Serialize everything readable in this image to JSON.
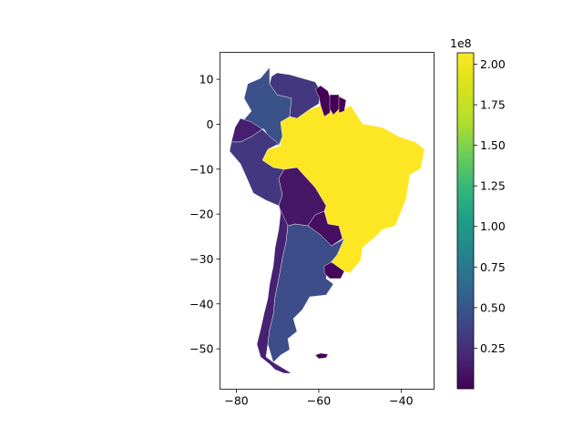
{
  "chart_data": {
    "type": "choropleth",
    "title": "",
    "xlabel": "",
    "ylabel": "",
    "xlim": [
      -84,
      -32
    ],
    "ylim": [
      -59,
      16
    ],
    "x_ticks": [
      -80,
      -60,
      -40
    ],
    "x_tick_labels": [
      "−80",
      "−60",
      "−40"
    ],
    "y_ticks": [
      10,
      0,
      -10,
      -20,
      -30,
      -40,
      -50
    ],
    "y_tick_labels": [
      "10",
      "0",
      "−10",
      "−20",
      "−30",
      "−40",
      "−50"
    ],
    "colorbar": {
      "colormap": "viridis",
      "min": 0,
      "max": 207000000,
      "ticks": [
        25000000,
        50000000,
        75000000,
        100000000,
        125000000,
        150000000,
        175000000,
        200000000
      ],
      "tick_labels": [
        "0.25",
        "0.50",
        "0.75",
        "1.00",
        "1.25",
        "1.50",
        "1.75",
        "2.00"
      ],
      "offset_text": "1e8"
    },
    "regions": [
      {
        "name": "Brazil",
        "value": 207000000
      },
      {
        "name": "Colombia",
        "value": 47000000
      },
      {
        "name": "Argentina",
        "value": 44000000
      },
      {
        "name": "Peru",
        "value": 31000000
      },
      {
        "name": "Venezuela",
        "value": 31000000
      },
      {
        "name": "Chile",
        "value": 17000000
      },
      {
        "name": "Ecuador",
        "value": 16000000
      },
      {
        "name": "Bolivia",
        "value": 11000000
      },
      {
        "name": "Paraguay",
        "value": 7000000
      },
      {
        "name": "Uruguay",
        "value": 3400000
      },
      {
        "name": "Guyana",
        "value": 740000
      },
      {
        "name": "Suriname",
        "value": 590000
      },
      {
        "name": "French Guiana",
        "value": 250000
      },
      {
        "name": "Falkland Islands",
        "value": 3000
      }
    ]
  }
}
